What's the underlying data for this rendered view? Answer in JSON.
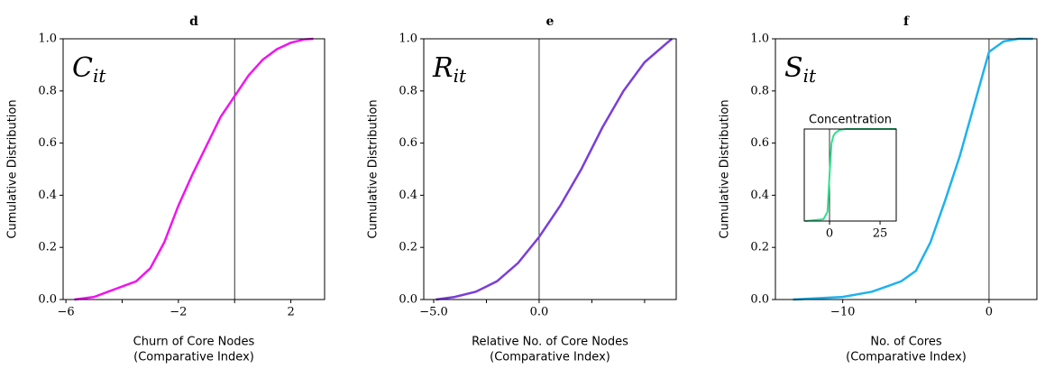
{
  "chart_data": [
    {
      "type": "line",
      "title": "d",
      "annotation": {
        "base": "C",
        "sub": "it"
      },
      "xlabel": [
        "Churn of Core Nodes",
        "(Comparative Index)"
      ],
      "ylabel": "Cumulative Distribution",
      "xlim": [
        -6.1,
        3.2
      ],
      "ylim": [
        0,
        1
      ],
      "xticks": [
        {
          "value": -6,
          "label": "−6"
        },
        {
          "value": -2,
          "label": "−2"
        },
        2
      ],
      "xminor_ticks": [
        -4,
        0
      ],
      "yticks": [
        {
          "value": 0,
          "label": "0.0"
        },
        {
          "value": 0.2,
          "label": "0.2"
        },
        {
          "value": 0.4,
          "label": "0.4"
        },
        {
          "value": 0.6,
          "label": "0.6"
        },
        {
          "value": 0.8,
          "label": "0.8"
        },
        {
          "value": 1,
          "label": "1.0"
        }
      ],
      "vline": 0,
      "color": "#f014f0",
      "x": [
        -5.7,
        -5,
        -4.5,
        -4,
        -3.5,
        -3,
        -2.5,
        -2,
        -1.5,
        -1,
        -0.5,
        0,
        0.5,
        1,
        1.5,
        2,
        2.5,
        2.8
      ],
      "values": [
        0,
        0.01,
        0.03,
        0.05,
        0.07,
        0.12,
        0.22,
        0.36,
        0.48,
        0.59,
        0.7,
        0.78,
        0.86,
        0.92,
        0.96,
        0.985,
        0.998,
        1
      ]
    },
    {
      "type": "line",
      "title": "e",
      "annotation": {
        "base": "R",
        "sub": "it"
      },
      "xlabel": [
        "Relative No. of Core Nodes",
        "(Comparative Index)"
      ],
      "ylabel": "Cumulative Distribution",
      "xlim": [
        -5.47,
        6.5
      ],
      "ylim": [
        0,
        1
      ],
      "xticks": [
        {
          "value": -5,
          "label": "−5.0"
        },
        {
          "value": 0,
          "label": "0.0"
        }
      ],
      "xminor_ticks": [
        -2.5,
        2.5,
        5
      ],
      "yticks": [
        {
          "value": 0,
          "label": "0.0"
        },
        {
          "value": 0.2,
          "label": "0.2"
        },
        {
          "value": 0.4,
          "label": "0.4"
        },
        {
          "value": 0.6,
          "label": "0.6"
        },
        {
          "value": 0.8,
          "label": "0.8"
        },
        {
          "value": 1,
          "label": "1.0"
        }
      ],
      "vline": 0,
      "color": "#7b3ed8",
      "x": [
        -4.9,
        -4,
        -3,
        -2,
        -1,
        0,
        1,
        2,
        3,
        4,
        5,
        6,
        6.3
      ],
      "values": [
        0,
        0.01,
        0.03,
        0.07,
        0.14,
        0.24,
        0.36,
        0.5,
        0.66,
        0.8,
        0.91,
        0.98,
        1
      ]
    },
    {
      "type": "line",
      "title": "f",
      "annotation": {
        "base": "S",
        "sub": "it"
      },
      "xlabel": [
        "No. of Cores",
        "(Comparative Index)"
      ],
      "ylabel": "Cumulative Distribution",
      "xlim": [
        -14.6,
        3.27
      ],
      "ylim": [
        0,
        1
      ],
      "xticks": [
        {
          "value": -10,
          "label": "−10"
        },
        0
      ],
      "xminor_ticks": [
        -5
      ],
      "yticks": [
        {
          "value": 0,
          "label": "0.0"
        },
        {
          "value": 0.2,
          "label": "0.2"
        },
        {
          "value": 0.4,
          "label": "0.4"
        },
        {
          "value": 0.6,
          "label": "0.6"
        },
        {
          "value": 0.8,
          "label": "0.8"
        },
        {
          "value": 1,
          "label": "1.0"
        }
      ],
      "vline": 0,
      "color": "#1eb2ee",
      "x": [
        -13.4,
        -10,
        -8,
        -7,
        -6,
        -5,
        -4,
        -3,
        -2,
        -1,
        0,
        1,
        2,
        3
      ],
      "values": [
        0,
        0.01,
        0.03,
        0.05,
        0.07,
        0.11,
        0.22,
        0.38,
        0.55,
        0.75,
        0.95,
        0.99,
        1,
        1
      ]
    },
    {
      "type": "line",
      "title": "Concentration",
      "xlim": [
        -12.5,
        33
      ],
      "ylim": [
        0,
        1
      ],
      "xticks": [
        0,
        25
      ],
      "vline": 0,
      "color": "#2ee08c",
      "x": [
        -12,
        -3,
        -1,
        0,
        1,
        2,
        3,
        5,
        8,
        33
      ],
      "values": [
        0,
        0.02,
        0.1,
        0.5,
        0.85,
        0.93,
        0.96,
        0.99,
        1,
        1
      ]
    }
  ]
}
